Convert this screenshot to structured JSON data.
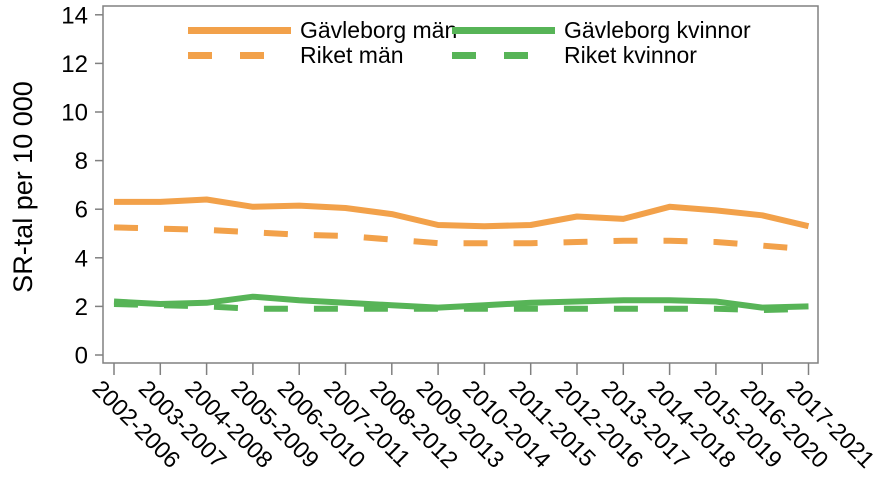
{
  "colors": {
    "orange": "#F2A14A",
    "green": "#57B457",
    "frame": "#808080",
    "text": "#000000",
    "background": "#FFFFFF"
  },
  "chart_data": {
    "type": "line",
    "title": "",
    "xlabel": "",
    "ylabel": "SR-tal per 10 000",
    "ylim": [
      0,
      14
    ],
    "yticks": [
      0,
      2,
      4,
      6,
      8,
      10,
      12,
      14
    ],
    "grid": false,
    "legend_position": "top-inside",
    "categories": [
      "2002-2006",
      "2003-2007",
      "2004-2008",
      "2005-2009",
      "2006-2010",
      "2007-2011",
      "2008-2012",
      "2009-2013",
      "2010-2014",
      "2011-2015",
      "2012-2016",
      "2013-2017",
      "2014-2018",
      "2015-2019",
      "2016-2020",
      "2017-2021"
    ],
    "series": [
      {
        "id": "gavleborg-man",
        "name": "Gävleborg män",
        "color": "#F2A14A",
        "style": "solid",
        "values": [
          6.3,
          6.3,
          6.4,
          6.1,
          6.15,
          6.05,
          5.8,
          5.35,
          5.3,
          5.35,
          5.7,
          5.6,
          6.1,
          5.95,
          5.75,
          5.3
        ]
      },
      {
        "id": "riket-man",
        "name": "Riket män",
        "color": "#F2A14A",
        "style": "dashed",
        "values": [
          5.25,
          5.2,
          5.15,
          5.05,
          4.95,
          4.9,
          4.75,
          4.6,
          4.6,
          4.6,
          4.65,
          4.7,
          4.7,
          4.65,
          4.5,
          4.35
        ]
      },
      {
        "id": "gavleborg-kvinnor",
        "name": "Gävleborg kvinnor",
        "color": "#57B457",
        "style": "solid",
        "values": [
          2.2,
          2.1,
          2.15,
          2.4,
          2.25,
          2.15,
          2.05,
          1.95,
          2.05,
          2.15,
          2.2,
          2.25,
          2.25,
          2.2,
          1.95,
          2.0
        ]
      },
      {
        "id": "riket-kvinnor",
        "name": "Riket kvinnor",
        "color": "#57B457",
        "style": "dashed",
        "values": [
          2.1,
          2.05,
          2.0,
          1.9,
          1.9,
          1.9,
          1.9,
          1.9,
          1.9,
          1.9,
          1.9,
          1.9,
          1.9,
          1.9,
          1.85,
          1.9
        ]
      }
    ]
  }
}
